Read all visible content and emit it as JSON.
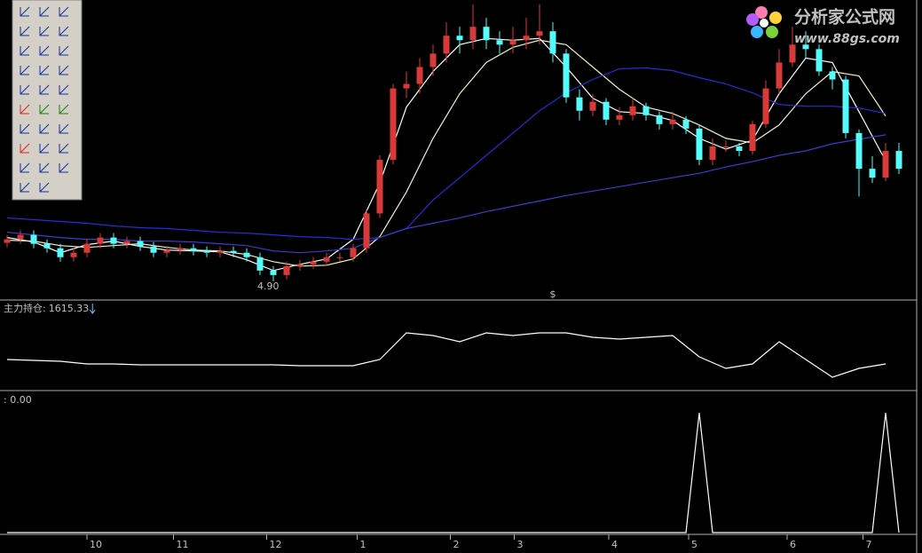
{
  "chart_data": [
    {
      "type": "candlestick",
      "open": [
        5.33,
        5.37,
        5.42,
        5.32,
        5.27,
        5.17,
        5.22,
        5.32,
        5.39,
        5.32,
        5.35,
        5.29,
        5.22,
        5.25,
        5.27,
        5.24,
        5.22,
        5.24,
        5.22,
        5.17,
        5.02,
        4.97,
        5.07,
        5.09,
        5.12,
        5.17,
        5.17,
        5.27,
        5.66,
        6.26,
        7.06,
        7.11,
        7.3,
        7.45,
        7.65,
        7.6,
        7.75,
        7.6,
        7.55,
        7.6,
        7.65,
        7.7,
        7.45,
        6.96,
        6.81,
        6.91,
        6.71,
        6.76,
        6.86,
        6.76,
        6.66,
        6.71,
        6.61,
        6.26,
        6.41,
        6.41,
        6.36,
        6.66,
        7.06,
        7.35,
        7.55,
        7.5,
        7.25,
        7.16,
        6.56,
        6.16,
        6.06,
        6.36
      ],
      "close": [
        5.37,
        5.42,
        5.32,
        5.27,
        5.17,
        5.22,
        5.32,
        5.39,
        5.32,
        5.35,
        5.29,
        5.22,
        5.25,
        5.27,
        5.24,
        5.22,
        5.24,
        5.22,
        5.17,
        5.02,
        4.97,
        5.07,
        5.09,
        5.12,
        5.17,
        5.17,
        5.27,
        5.66,
        6.26,
        7.06,
        7.11,
        7.3,
        7.45,
        7.65,
        7.6,
        7.75,
        7.6,
        7.55,
        7.6,
        7.65,
        7.7,
        7.45,
        6.96,
        6.81,
        6.91,
        6.71,
        6.76,
        6.86,
        6.76,
        6.66,
        6.71,
        6.61,
        6.26,
        6.41,
        6.41,
        6.36,
        6.66,
        7.06,
        7.35,
        7.55,
        7.5,
        7.25,
        7.16,
        6.56,
        6.16,
        6.06,
        6.36,
        6.16
      ],
      "high": [
        5.42,
        5.47,
        5.47,
        5.37,
        5.32,
        5.27,
        5.37,
        5.44,
        5.44,
        5.4,
        5.4,
        5.34,
        5.3,
        5.32,
        5.32,
        5.29,
        5.29,
        5.29,
        5.27,
        5.22,
        5.07,
        5.12,
        5.14,
        5.17,
        5.22,
        5.22,
        5.32,
        5.71,
        6.31,
        7.11,
        7.25,
        7.4,
        7.55,
        7.8,
        7.75,
        8.0,
        7.85,
        7.7,
        7.75,
        7.85,
        8.0,
        7.8,
        7.5,
        7.05,
        7.0,
        6.95,
        6.85,
        6.95,
        6.9,
        6.8,
        6.8,
        6.75,
        6.65,
        6.5,
        6.48,
        6.45,
        6.7,
        7.15,
        7.5,
        7.75,
        7.7,
        7.55,
        7.3,
        7.2,
        6.6,
        6.3,
        6.45,
        6.45
      ],
      "low": [
        5.28,
        5.32,
        5.27,
        5.22,
        5.12,
        5.12,
        5.17,
        5.27,
        5.27,
        5.27,
        5.24,
        5.17,
        5.17,
        5.2,
        5.19,
        5.17,
        5.17,
        5.17,
        5.12,
        4.97,
        4.9,
        4.92,
        5.02,
        5.04,
        5.07,
        5.12,
        5.12,
        5.22,
        5.61,
        6.21,
        6.95,
        7.0,
        7.2,
        7.35,
        7.45,
        7.5,
        7.5,
        7.45,
        7.45,
        7.5,
        7.55,
        7.35,
        6.9,
        6.7,
        6.75,
        6.65,
        6.65,
        6.7,
        6.7,
        6.6,
        6.6,
        6.55,
        6.2,
        6.2,
        6.35,
        6.3,
        6.32,
        6.62,
        7.0,
        7.3,
        7.4,
        7.2,
        7.05,
        6.5,
        5.85,
        6.0,
        6.02,
        6.1
      ],
      "up_color": "#d83a3a",
      "down_color": "#54fcfc",
      "ylim": [
        4.72,
        8.05
      ],
      "low_label": {
        "index": 20,
        "label": "4.90"
      },
      "marker": {
        "index": 41,
        "label": "$",
        "color": "#e02020"
      },
      "ma_x": [
        0,
        2,
        4,
        6,
        8,
        10,
        12,
        14,
        16,
        18,
        20,
        22,
        24,
        26,
        28,
        30,
        32,
        34,
        36,
        38,
        40,
        42,
        44,
        46,
        48,
        50,
        52,
        54,
        56,
        58,
        60,
        62,
        64,
        66
      ],
      "series": [
        {
          "color": "#ffffff",
          "values": [
            5.39,
            5.34,
            5.22,
            5.31,
            5.35,
            5.29,
            5.25,
            5.24,
            5.23,
            5.14,
            5.02,
            5.09,
            5.15,
            5.37,
            6.0,
            6.85,
            7.25,
            7.55,
            7.62,
            7.6,
            7.62,
            7.3,
            6.95,
            6.8,
            6.78,
            6.7,
            6.5,
            6.38,
            6.48,
            7.0,
            7.4,
            7.35,
            6.8,
            6.25
          ]
        },
        {
          "color": "#f0f0c8",
          "values": [
            5.36,
            5.35,
            5.3,
            5.28,
            5.3,
            5.32,
            5.28,
            5.25,
            5.24,
            5.2,
            5.12,
            5.07,
            5.08,
            5.15,
            5.4,
            5.9,
            6.5,
            7.0,
            7.35,
            7.52,
            7.6,
            7.55,
            7.3,
            7.05,
            6.85,
            6.78,
            6.65,
            6.5,
            6.45,
            6.65,
            7.0,
            7.25,
            7.2,
            6.75
          ]
        },
        {
          "color": "#2a2ad8",
          "values": [
            5.61,
            5.59,
            5.57,
            5.55,
            5.52,
            5.5,
            5.49,
            5.47,
            5.45,
            5.44,
            5.42,
            5.4,
            5.39,
            5.37,
            5.39,
            5.49,
            5.81,
            6.06,
            6.31,
            6.56,
            6.81,
            7.01,
            7.16,
            7.28,
            7.29,
            7.26,
            7.18,
            7.11,
            7.01,
            6.88,
            6.86,
            6.86,
            6.84,
            6.78
          ]
        },
        {
          "color": "#3c3cc8",
          "values": [
            5.45,
            5.42,
            5.39,
            5.37,
            5.37,
            5.35,
            5.35,
            5.34,
            5.32,
            5.3,
            5.24,
            5.22,
            5.24,
            5.27,
            5.39,
            5.49,
            5.55,
            5.61,
            5.68,
            5.74,
            5.8,
            5.86,
            5.91,
            5.96,
            6.01,
            6.06,
            6.11,
            6.18,
            6.24,
            6.31,
            6.36,
            6.44,
            6.49,
            6.54
          ]
        }
      ]
    },
    {
      "type": "line",
      "title": "主力持仓:",
      "last_value": 1615.33,
      "color": "#ffffff",
      "ylim": [
        1345,
        2265
      ],
      "x": [
        0,
        2,
        4,
        6,
        8,
        10,
        12,
        14,
        16,
        18,
        20,
        22,
        24,
        26,
        28,
        30,
        32,
        34,
        36,
        38,
        40,
        42,
        44,
        46,
        48,
        50,
        52,
        54,
        56,
        58,
        60,
        62,
        64,
        66
      ],
      "values": [
        1665,
        1655,
        1645,
        1615,
        1615,
        1605,
        1605,
        1605,
        1605,
        1605,
        1605,
        1595,
        1595,
        1595,
        1665,
        1965,
        1935,
        1865,
        1965,
        1935,
        1965,
        1965,
        1915,
        1895,
        1915,
        1935,
        1695,
        1565,
        1615,
        1865,
        1665,
        1465,
        1565,
        1615
      ]
    },
    {
      "type": "spike",
      "title": ": 0.00",
      "color": "#ffffff",
      "ylim": [
        0,
        1.15
      ],
      "values": [
        0,
        0,
        0,
        0,
        0,
        0,
        0,
        0,
        0,
        0,
        0,
        0,
        0,
        0,
        0,
        0,
        0,
        0,
        0,
        0,
        0,
        0,
        0,
        0,
        0,
        0,
        0,
        0,
        0,
        0,
        0,
        0,
        0,
        0,
        0,
        0,
        0,
        0,
        0,
        0,
        0,
        0,
        0,
        0,
        0,
        0,
        0,
        0,
        0,
        0,
        0,
        0,
        1,
        0,
        0,
        0,
        0,
        0,
        0,
        0,
        0,
        0,
        0,
        0,
        0,
        0,
        1,
        0
      ]
    }
  ],
  "x_axis": {
    "ticks": [
      {
        "value": 6,
        "label": "10"
      },
      {
        "value": 12.5,
        "label": "11"
      },
      {
        "value": 19.5,
        "label": "12"
      },
      {
        "value": 26.3,
        "label": "1"
      },
      {
        "value": 33.3,
        "label": "2"
      },
      {
        "value": 38.1,
        "label": "3"
      },
      {
        "value": 45.2,
        "label": "4"
      },
      {
        "value": 51.2,
        "label": "5"
      },
      {
        "value": 58.6,
        "label": "6"
      },
      {
        "value": 64.3,
        "label": "7"
      }
    ]
  },
  "watermark": {
    "brand": "分析家公式网",
    "url": "www.88gs.com"
  }
}
